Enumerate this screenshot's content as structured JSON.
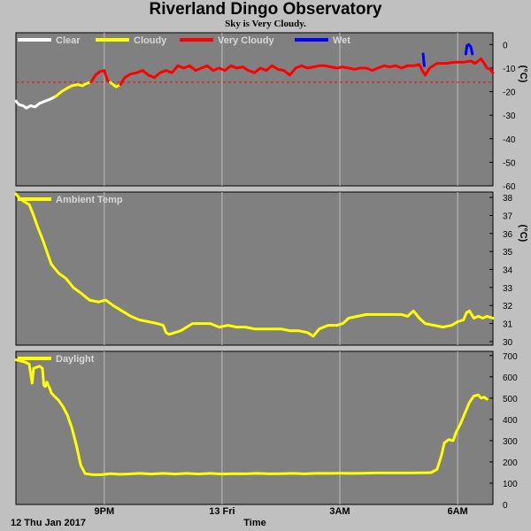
{
  "title": "Riverland Dingo Observatory",
  "subtitle": "Sky is Very Cloudy.",
  "chart_data": [
    {
      "type": "line",
      "panel": "sky",
      "ylabel": "(°C)",
      "ylim": [
        -60,
        5
      ],
      "yticks": [
        0,
        -10,
        -20,
        -30,
        -40,
        -50,
        -60
      ],
      "threshold_line": -16,
      "legend": [
        {
          "name": "Clear",
          "color": "#ffffff"
        },
        {
          "name": "Cloudy",
          "color": "#ffff00"
        },
        {
          "name": "Very Cloudy",
          "color": "#ff0000"
        },
        {
          "name": "Wet",
          "color": "#0000ff"
        }
      ],
      "series": [
        {
          "name": "Clear",
          "color": "#ffffff",
          "points": [
            [
              0,
              -24
            ],
            [
              0.1,
              -25.5
            ],
            [
              0.25,
              -26
            ],
            [
              0.35,
              -27
            ],
            [
              0.5,
              -26
            ],
            [
              0.65,
              -26.5
            ],
            [
              0.8,
              -25
            ],
            [
              1.0,
              -24
            ],
            [
              1.2,
              -23
            ],
            [
              1.35,
              -22
            ]
          ]
        },
        {
          "name": "Cloudy",
          "color": "#ffff00",
          "points": [
            [
              1.35,
              -22
            ],
            [
              1.55,
              -20
            ],
            [
              1.75,
              -18.5
            ],
            [
              1.9,
              -17.5
            ],
            [
              2.1,
              -17
            ],
            [
              2.25,
              -17.5
            ],
            [
              2.4,
              -16.5
            ],
            [
              2.55,
              -16
            ]
          ]
        },
        {
          "name": "Very Cloudy",
          "color": "#ff0000",
          "points": [
            [
              2.55,
              -16
            ],
            [
              2.7,
              -13
            ],
            [
              2.85,
              -11.5
            ],
            [
              3.0,
              -11
            ],
            [
              3.1,
              -15
            ],
            [
              3.2,
              -16
            ]
          ]
        },
        {
          "name": "Cloudy",
          "color": "#ffff00",
          "points": [
            [
              3.2,
              -16
            ],
            [
              3.4,
              -18
            ],
            [
              3.55,
              -17
            ]
          ]
        },
        {
          "name": "Very Cloudy",
          "color": "#ff0000",
          "points": [
            [
              3.55,
              -17
            ],
            [
              3.7,
              -14
            ],
            [
              3.9,
              -12.5
            ],
            [
              4.1,
              -12
            ],
            [
              4.3,
              -11
            ],
            [
              4.5,
              -13
            ],
            [
              4.7,
              -14
            ],
            [
              4.9,
              -12
            ],
            [
              5.1,
              -11
            ],
            [
              5.3,
              -12
            ],
            [
              5.5,
              -9
            ],
            [
              5.7,
              -10
            ],
            [
              5.9,
              -9
            ],
            [
              6.1,
              -11
            ],
            [
              6.3,
              -10
            ],
            [
              6.5,
              -9
            ],
            [
              6.7,
              -11
            ],
            [
              6.9,
              -10
            ],
            [
              7.1,
              -11
            ],
            [
              7.3,
              -9
            ],
            [
              7.5,
              -10
            ],
            [
              7.7,
              -9.5
            ],
            [
              7.9,
              -11
            ],
            [
              8.1,
              -12
            ],
            [
              8.3,
              -10
            ],
            [
              8.5,
              -11
            ],
            [
              8.7,
              -9
            ],
            [
              8.9,
              -10.5
            ],
            [
              9.1,
              -11
            ],
            [
              9.3,
              -13
            ],
            [
              9.5,
              -10
            ],
            [
              9.7,
              -9
            ],
            [
              9.9,
              -10
            ],
            [
              10.1,
              -9.5
            ],
            [
              10.3,
              -9
            ],
            [
              10.5,
              -9
            ],
            [
              10.7,
              -9.5
            ],
            [
              10.9,
              -10
            ],
            [
              11.1,
              -9.5
            ],
            [
              11.3,
              -10
            ],
            [
              11.5,
              -10.5
            ],
            [
              11.7,
              -10
            ],
            [
              11.9,
              -10
            ],
            [
              12.1,
              -11
            ],
            [
              12.3,
              -10
            ],
            [
              12.5,
              -9
            ],
            [
              12.7,
              -9.5
            ],
            [
              12.9,
              -9
            ],
            [
              13.1,
              -10
            ],
            [
              13.3,
              -9
            ],
            [
              13.5,
              -9
            ],
            [
              13.7,
              -8.5
            ],
            [
              13.8,
              -11
            ],
            [
              13.9,
              -13
            ],
            [
              14.05,
              -10
            ],
            [
              14.3,
              -8
            ],
            [
              14.6,
              -8
            ],
            [
              14.9,
              -7.5
            ],
            [
              15.2,
              -7.5
            ],
            [
              15.45,
              -7
            ],
            [
              15.6,
              -8
            ],
            [
              15.8,
              -6
            ],
            [
              15.9,
              -8
            ],
            [
              16.0,
              -10
            ],
            [
              16.1,
              -10.5
            ],
            [
              16.2,
              -12
            ]
          ]
        },
        {
          "name": "Wet",
          "color": "#0000ff",
          "points": [
            [
              13.83,
              -4
            ],
            [
              13.85,
              -7
            ],
            [
              13.87,
              -9
            ]
          ]
        },
        {
          "name": "Wet",
          "color": "#0000ff",
          "points": [
            [
              15.28,
              -4
            ],
            [
              15.32,
              -0.5
            ],
            [
              15.38,
              0
            ],
            [
              15.45,
              -1
            ],
            [
              15.5,
              -4
            ]
          ]
        }
      ]
    },
    {
      "type": "line",
      "panel": "ambient",
      "ylabel": "(°C)",
      "ylim": [
        29.8,
        38.3
      ],
      "yticks": [
        30,
        31,
        32,
        33,
        34,
        35,
        36,
        37,
        38
      ],
      "legend": [
        {
          "name": "Ambient Temp",
          "color": "#ffff00"
        }
      ],
      "series": [
        {
          "name": "Ambient Temp",
          "color": "#ffff00",
          "points": [
            [
              0,
              38.2
            ],
            [
              0.1,
              38.0
            ],
            [
              0.25,
              37.8
            ],
            [
              0.45,
              37.6
            ],
            [
              0.6,
              37.0
            ],
            [
              0.75,
              36.3
            ],
            [
              0.9,
              35.7
            ],
            [
              1.05,
              35.0
            ],
            [
              1.2,
              34.3
            ],
            [
              1.45,
              33.8
            ],
            [
              1.7,
              33.5
            ],
            [
              1.95,
              33.0
            ],
            [
              2.2,
              32.7
            ],
            [
              2.5,
              32.3
            ],
            [
              2.8,
              32.2
            ],
            [
              3.05,
              32.3
            ],
            [
              3.3,
              32.0
            ],
            [
              3.6,
              31.7
            ],
            [
              3.9,
              31.4
            ],
            [
              4.2,
              31.2
            ],
            [
              4.5,
              31.1
            ],
            [
              4.8,
              31.0
            ],
            [
              5.0,
              30.9
            ],
            [
              5.1,
              30.5
            ],
            [
              5.2,
              30.4
            ],
            [
              5.4,
              30.5
            ],
            [
              5.6,
              30.6
            ],
            [
              5.8,
              30.8
            ],
            [
              6.0,
              31.0
            ],
            [
              6.3,
              31.0
            ],
            [
              6.6,
              31.0
            ],
            [
              6.9,
              30.8
            ],
            [
              7.2,
              30.9
            ],
            [
              7.5,
              30.8
            ],
            [
              7.8,
              30.8
            ],
            [
              8.1,
              30.7
            ],
            [
              8.4,
              30.7
            ],
            [
              8.7,
              30.7
            ],
            [
              9.0,
              30.7
            ],
            [
              9.3,
              30.6
            ],
            [
              9.6,
              30.6
            ],
            [
              9.9,
              30.5
            ],
            [
              10.1,
              30.3
            ],
            [
              10.3,
              30.7
            ],
            [
              10.6,
              30.9
            ],
            [
              10.9,
              30.9
            ],
            [
              11.1,
              31.0
            ],
            [
              11.3,
              31.3
            ],
            [
              11.6,
              31.4
            ],
            [
              11.9,
              31.5
            ],
            [
              12.2,
              31.5
            ],
            [
              12.5,
              31.5
            ],
            [
              12.8,
              31.5
            ],
            [
              13.1,
              31.5
            ],
            [
              13.3,
              31.4
            ],
            [
              13.5,
              31.7
            ],
            [
              13.7,
              31.3
            ],
            [
              13.9,
              31.0
            ],
            [
              14.2,
              30.9
            ],
            [
              14.5,
              30.8
            ],
            [
              14.8,
              30.9
            ],
            [
              15.0,
              31.1
            ],
            [
              15.2,
              31.2
            ],
            [
              15.3,
              31.6
            ],
            [
              15.4,
              31.7
            ],
            [
              15.55,
              31.3
            ],
            [
              15.7,
              31.4
            ],
            [
              15.85,
              31.3
            ],
            [
              16.0,
              31.4
            ],
            [
              16.2,
              31.3
            ]
          ]
        }
      ]
    },
    {
      "type": "line",
      "panel": "daylight",
      "ylim": [
        0,
        720
      ],
      "yticks": [
        0,
        100,
        200,
        300,
        400,
        500,
        600,
        700
      ],
      "legend": [
        {
          "name": "Daylight",
          "color": "#ffff00"
        }
      ],
      "series": [
        {
          "name": "Daylight",
          "color": "#ffff00",
          "points": [
            [
              0,
              680
            ],
            [
              0.15,
              675
            ],
            [
              0.3,
              670
            ],
            [
              0.45,
              660
            ],
            [
              0.55,
              570
            ],
            [
              0.6,
              640
            ],
            [
              0.7,
              645
            ],
            [
              0.8,
              650
            ],
            [
              0.9,
              640
            ],
            [
              0.95,
              560
            ],
            [
              1.0,
              555
            ],
            [
              1.05,
              575
            ],
            [
              1.1,
              560
            ],
            [
              1.15,
              545
            ],
            [
              1.2,
              525
            ],
            [
              1.3,
              510
            ],
            [
              1.45,
              490
            ],
            [
              1.6,
              460
            ],
            [
              1.75,
              420
            ],
            [
              1.9,
              360
            ],
            [
              2.05,
              280
            ],
            [
              2.2,
              185
            ],
            [
              2.35,
              145
            ],
            [
              2.6,
              140
            ],
            [
              2.9,
              140
            ],
            [
              3.2,
              145
            ],
            [
              3.5,
              142
            ],
            [
              3.8,
              143
            ],
            [
              4.2,
              146
            ],
            [
              4.6,
              143
            ],
            [
              5.0,
              146
            ],
            [
              5.4,
              143
            ],
            [
              5.8,
              146
            ],
            [
              6.2,
              143
            ],
            [
              6.6,
              146
            ],
            [
              7.0,
              143
            ],
            [
              7.4,
              145
            ],
            [
              7.8,
              144
            ],
            [
              8.2,
              146
            ],
            [
              8.6,
              144
            ],
            [
              9.0,
              145
            ],
            [
              9.4,
              146
            ],
            [
              9.8,
              144
            ],
            [
              10.2,
              146
            ],
            [
              10.6,
              146
            ],
            [
              11.0,
              147
            ],
            [
              11.4,
              146
            ],
            [
              11.8,
              147
            ],
            [
              12.2,
              148
            ],
            [
              12.6,
              148
            ],
            [
              13.0,
              148
            ],
            [
              13.4,
              148
            ],
            [
              13.8,
              149
            ],
            [
              14.1,
              150
            ],
            [
              14.3,
              165
            ],
            [
              14.45,
              230
            ],
            [
              14.55,
              290
            ],
            [
              14.7,
              305
            ],
            [
              14.85,
              300
            ],
            [
              14.95,
              340
            ],
            [
              15.1,
              380
            ],
            [
              15.25,
              430
            ],
            [
              15.4,
              480
            ],
            [
              15.55,
              510
            ],
            [
              15.7,
              515
            ],
            [
              15.8,
              500
            ],
            [
              15.9,
              505
            ],
            [
              16.0,
              495
            ]
          ]
        }
      ]
    }
  ],
  "x_axis": {
    "range": [
      0,
      16.2
    ],
    "ticks": [
      {
        "value": 3,
        "label": "9PM"
      },
      {
        "value": 7,
        "label": "13 Fri"
      },
      {
        "value": 11,
        "label": "3AM"
      },
      {
        "value": 15,
        "label": "6AM"
      }
    ],
    "minor_grid": [
      3,
      7,
      11,
      15
    ]
  },
  "footer": {
    "date": "12 Thu Jan 2017",
    "xlabel": "Time"
  }
}
